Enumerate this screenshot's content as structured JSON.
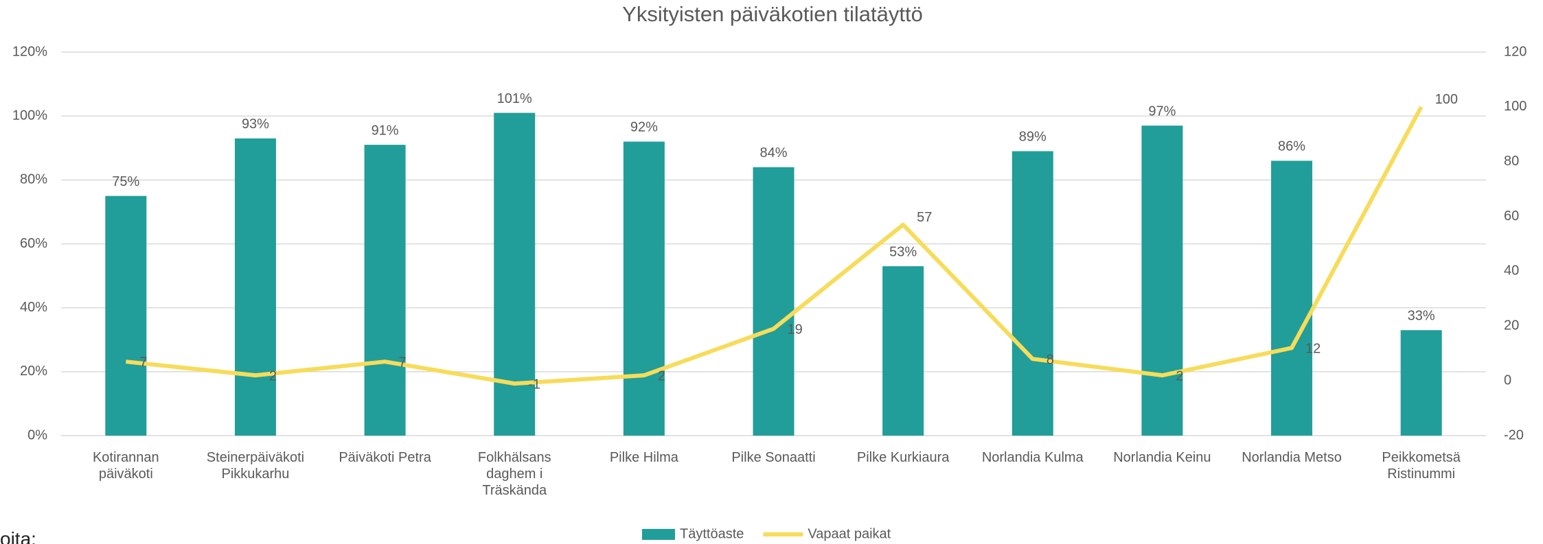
{
  "chart_data": {
    "type": "bar-line",
    "title": "Yksityisten päiväkotien tilatäyttö",
    "categories": [
      "Kotirannan päiväkoti",
      "Steinerpäiväkoti Pikkukarhu",
      "Päiväkoti Petra",
      "Folkhälsans daghem i Träskända",
      "Pilke Hilma",
      "Pilke Sonaatti",
      "Pilke Kurkiaura",
      "Norlandia Kulma",
      "Norlandia Keinu",
      "Norlandia Metso",
      "Peikkometsä Ristinummi"
    ],
    "series": [
      {
        "name": "Täyttöaste",
        "type": "bar",
        "color": "#219e99",
        "values": [
          75,
          93,
          91,
          101,
          92,
          84,
          53,
          89,
          97,
          86,
          33
        ],
        "value_labels": [
          "75%",
          "93%",
          "91%",
          "101%",
          "92%",
          "84%",
          "53%",
          "89%",
          "97%",
          "86%",
          "33%"
        ]
      },
      {
        "name": "Vapaat paikat",
        "type": "line",
        "axis": "y2",
        "color": "#f7dc5a",
        "values": [
          7,
          2,
          7,
          -1,
          2,
          19,
          57,
          8,
          2,
          12,
          100
        ]
      }
    ],
    "ylim": [
      0,
      120
    ],
    "yticks": [
      {
        "value": 0,
        "label": "0%"
      },
      {
        "value": 20,
        "label": "20%"
      },
      {
        "value": 40,
        "label": "40%"
      },
      {
        "value": 60,
        "label": "60%"
      },
      {
        "value": 80,
        "label": "80%"
      },
      {
        "value": 100,
        "label": "100%"
      },
      {
        "value": 120,
        "label": "120%"
      }
    ],
    "y2lim": [
      -20,
      120
    ],
    "y2ticks": [
      -20,
      0,
      20,
      40,
      60,
      80,
      100,
      120
    ],
    "grid": true,
    "legend": "bottom"
  },
  "footer_text": "oita:"
}
